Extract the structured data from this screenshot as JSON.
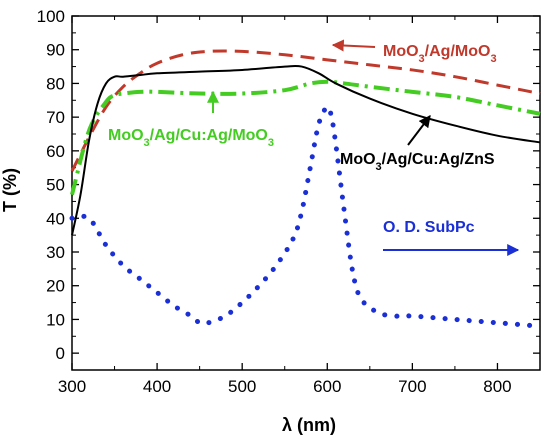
{
  "chart_data": {
    "type": "line",
    "xlabel": "λ (nm)",
    "ylabel": "T (%)",
    "xlim": [
      300,
      850
    ],
    "ylim": [
      -5,
      100
    ],
    "xticks": [
      300,
      400,
      500,
      600,
      700,
      800
    ],
    "yticks": [
      0,
      10,
      20,
      30,
      40,
      50,
      60,
      70,
      80,
      90,
      100
    ],
    "grid": false,
    "series": [
      {
        "name": "MoO3/Ag/MoO3",
        "color": "#c0392b",
        "style": "dashed",
        "x": [
          300,
          320,
          340,
          360,
          380,
          400,
          430,
          460,
          500,
          550,
          600,
          650,
          700,
          750,
          800,
          850
        ],
        "y": [
          54,
          64,
          73,
          79,
          83,
          86,
          88.5,
          89.5,
          89.5,
          88.5,
          87,
          85.5,
          84,
          82,
          79.5,
          77
        ]
      },
      {
        "name": "MoO3/Ag/Cu:Ag/MoO3",
        "color": "#44cc22",
        "style": "dash-dot",
        "x": [
          300,
          320,
          340,
          350,
          360,
          380,
          400,
          450,
          500,
          550,
          580,
          600,
          620,
          650,
          700,
          750,
          800,
          850
        ],
        "y": [
          47,
          66,
          74.5,
          76.5,
          77,
          77.5,
          77.5,
          77,
          77,
          78,
          80,
          80.5,
          80,
          79,
          77.5,
          76,
          73.5,
          71
        ]
      },
      {
        "name": "MoO3/Ag/Cu:Ag/ZnS",
        "color": "#000000",
        "style": "solid",
        "x": [
          300,
          310,
          320,
          330,
          340,
          350,
          360,
          380,
          400,
          450,
          500,
          550,
          570,
          590,
          610,
          650,
          700,
          750,
          800,
          850
        ],
        "y": [
          35,
          47,
          63,
          74,
          80,
          82,
          82,
          82.5,
          83,
          83.5,
          84,
          85,
          85,
          83,
          80,
          75.5,
          71,
          67.5,
          64.5,
          62.5
        ]
      },
      {
        "name": "O. D. SubPc",
        "color": "#1a2fd6",
        "style": "dotted",
        "x": [
          300,
          320,
          340,
          360,
          380,
          400,
          420,
          440,
          450,
          460,
          480,
          500,
          520,
          540,
          560,
          570,
          580,
          590,
          600,
          605,
          610,
          620,
          630,
          640,
          660,
          680,
          700,
          750,
          800,
          850
        ],
        "y": [
          40,
          40,
          32,
          26,
          22,
          18,
          14,
          11,
          9,
          9,
          11,
          15,
          20,
          26,
          34,
          42,
          55,
          68,
          73,
          70,
          62,
          42,
          24,
          16,
          12,
          11,
          11,
          10,
          9,
          8
        ]
      }
    ],
    "annotations": [
      {
        "text": "MoO3/Ag/MoO3",
        "color": "#c0392b"
      },
      {
        "text": "MoO3/Ag/Cu:Ag/MoO3",
        "color": "#44cc22"
      },
      {
        "text": "MoO3/Ag/Cu:Ag/ZnS",
        "color": "#000000"
      },
      {
        "text": "O. D. SubPc",
        "color": "#1a2fd6"
      }
    ]
  }
}
